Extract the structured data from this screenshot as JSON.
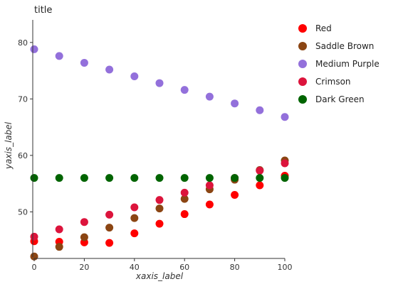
{
  "chart_data": {
    "type": "scatter",
    "title": "title",
    "xlabel": "xaxis_label",
    "ylabel": "yaxis_label",
    "xlim": [
      0,
      100
    ],
    "ylim": [
      42,
      84
    ],
    "xticks": [
      "0",
      "20",
      "40",
      "60",
      "80",
      "100"
    ],
    "yticks": [
      "50",
      "60",
      "70",
      "80"
    ],
    "grid": false,
    "legend_position": "right",
    "series": [
      {
        "name": "Red",
        "color": "#ff0000",
        "x": [
          0,
          10,
          20,
          30,
          40,
          50,
          60,
          70,
          80,
          90,
          100
        ],
        "y": [
          44.8,
          44.7,
          44.6,
          44.5,
          46.2,
          47.9,
          49.6,
          51.3,
          53.0,
          54.7,
          56.4
        ]
      },
      {
        "name": "Saddle Brown",
        "color": "#8b4513",
        "x": [
          0,
          10,
          20,
          30,
          40,
          50,
          60,
          70,
          80,
          90,
          100
        ],
        "y": [
          42.1,
          43.8,
          45.5,
          47.2,
          48.9,
          50.6,
          52.3,
          54.0,
          55.7,
          57.4,
          59.1
        ]
      },
      {
        "name": "Medium Purple",
        "color": "#9370db",
        "x": [
          0,
          10,
          20,
          30,
          40,
          50,
          60,
          70,
          80,
          90,
          100
        ],
        "y": [
          78.8,
          77.6,
          76.4,
          75.2,
          74.0,
          72.8,
          71.6,
          70.4,
          69.2,
          68.0,
          66.8
        ]
      },
      {
        "name": "Crimson",
        "color": "#dc143c",
        "x": [
          0,
          10,
          20,
          30,
          40,
          50,
          60,
          70,
          80,
          90,
          100
        ],
        "y": [
          45.6,
          46.9,
          48.2,
          49.5,
          50.8,
          52.1,
          53.4,
          54.7,
          56.0,
          57.3,
          58.6
        ]
      },
      {
        "name": "Dark Green",
        "color": "#006400",
        "x": [
          0,
          10,
          20,
          30,
          40,
          50,
          60,
          70,
          80,
          90,
          100
        ],
        "y": [
          56.0,
          56.0,
          56.0,
          56.0,
          56.0,
          56.0,
          56.0,
          56.0,
          56.0,
          56.0,
          56.0
        ]
      }
    ]
  }
}
